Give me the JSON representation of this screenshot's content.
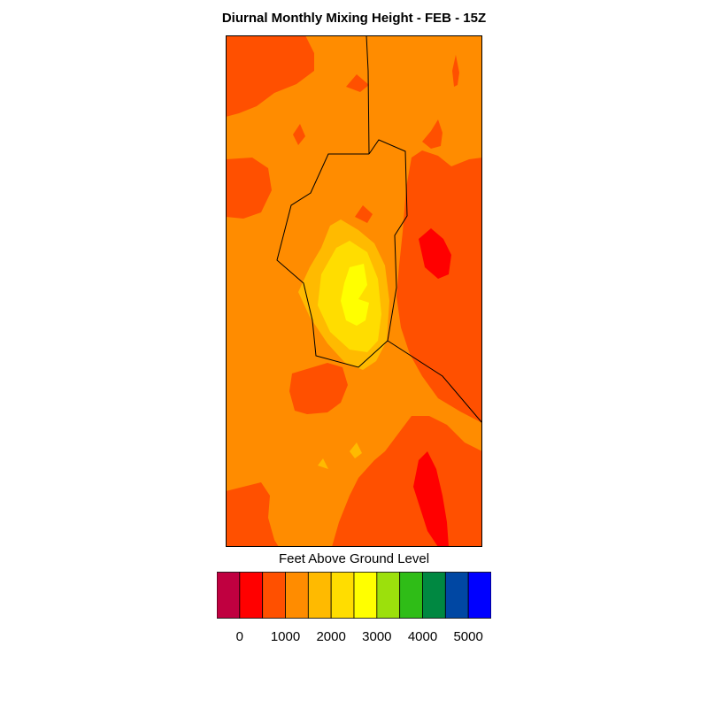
{
  "title": "Diurnal Monthly Mixing Height - FEB - 15Z",
  "legend": {
    "title": "Feet Above Ground Level",
    "colors": [
      "#c00040",
      "#ff0000",
      "#ff5000",
      "#ff8c00",
      "#ffba00",
      "#ffdd00",
      "#ffff00",
      "#9ce00c",
      "#2fbd17",
      "#008841",
      "#0047a3",
      "#0000ff"
    ],
    "tick_labels": [
      "0",
      "1000",
      "2000",
      "3000",
      "4000",
      "5000"
    ]
  },
  "map_colors": {
    "range_500_1000": "#ff0000",
    "range_1000_1500": "#ff5000",
    "range_1500_2000": "#ff8c00",
    "range_2000_2500": "#ffba00",
    "range_2500_3000": "#ffdd00",
    "range_3000_3500": "#ffff00",
    "boundary": "#000000"
  }
}
